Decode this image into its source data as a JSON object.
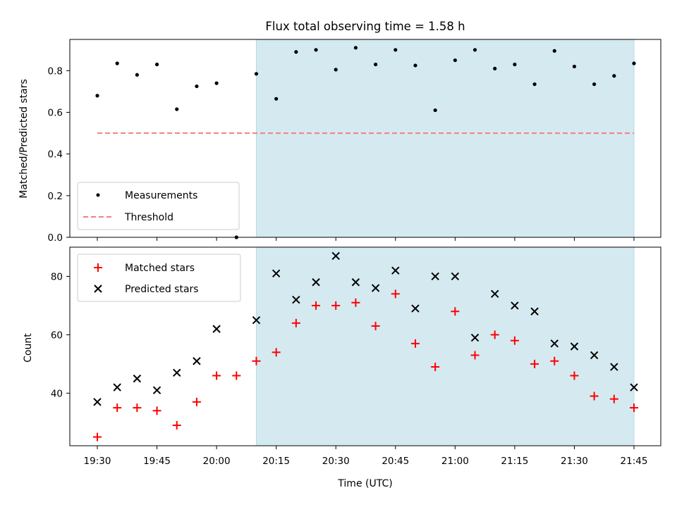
{
  "chart_data": [
    {
      "type": "scatter",
      "title": "Flux total observing time = 1.58 h",
      "xlabel": "",
      "ylabel": "Matched/Predicted stars",
      "ylim": [
        0.0,
        0.95
      ],
      "yticks": [
        "0.0",
        "0.2",
        "0.4",
        "0.6",
        "0.8"
      ],
      "shaded_region": {
        "start": "20:10",
        "end": "21:45",
        "color": "#d4eaf0"
      },
      "legend": {
        "position": "lower-left",
        "entries": [
          "Measurements",
          "Threshold"
        ]
      },
      "series": [
        {
          "name": "Measurements",
          "color": "#000000",
          "marker": "dot",
          "x": [
            "19:30",
            "19:35",
            "19:40",
            "19:45",
            "19:50",
            "19:55",
            "20:00",
            "20:05",
            "20:10",
            "20:15",
            "20:20",
            "20:25",
            "20:30",
            "20:35",
            "20:40",
            "20:45",
            "20:50",
            "20:55",
            "21:00",
            "21:05",
            "21:10",
            "21:15",
            "21:20",
            "21:25",
            "21:30",
            "21:35",
            "21:40",
            "21:45"
          ],
          "values": [
            0.68,
            0.835,
            0.78,
            0.83,
            0.615,
            0.725,
            0.74,
            0.0,
            0.785,
            0.665,
            0.89,
            0.9,
            0.805,
            0.91,
            0.83,
            0.9,
            0.825,
            0.61,
            0.85,
            0.9,
            0.81,
            0.83,
            0.735,
            0.895,
            0.82,
            0.735,
            0.775,
            0.835
          ]
        },
        {
          "name": "Threshold",
          "color": "#f08080",
          "line": "dashed",
          "x": [
            "19:30",
            "21:45"
          ],
          "values": [
            0.5,
            0.5
          ]
        }
      ]
    },
    {
      "type": "scatter",
      "title": "",
      "xlabel": "Time (UTC)",
      "ylabel": "Count",
      "ylim": [
        22,
        90
      ],
      "yticks": [
        "40",
        "60",
        "80"
      ],
      "xticks": [
        "19:30",
        "19:45",
        "20:00",
        "20:15",
        "20:30",
        "20:45",
        "21:00",
        "21:15",
        "21:30",
        "21:45"
      ],
      "shaded_region": {
        "start": "20:10",
        "end": "21:45",
        "color": "#d4eaf0"
      },
      "legend": {
        "position": "upper-left",
        "entries": [
          "Matched stars",
          "Predicted stars"
        ]
      },
      "series": [
        {
          "name": "Matched stars",
          "color": "#ff0000",
          "marker": "plus",
          "x": [
            "19:30",
            "19:35",
            "19:40",
            "19:45",
            "19:50",
            "19:55",
            "20:00",
            "20:05",
            "20:10",
            "20:15",
            "20:20",
            "20:25",
            "20:30",
            "20:35",
            "20:40",
            "20:45",
            "20:50",
            "20:55",
            "21:00",
            "21:05",
            "21:10",
            "21:15",
            "21:20",
            "21:25",
            "21:30",
            "21:35",
            "21:40",
            "21:45"
          ],
          "values": [
            25,
            35,
            35,
            34,
            29,
            37,
            46,
            46,
            51,
            54,
            64,
            70,
            70,
            71,
            63,
            74,
            57,
            49,
            68,
            53,
            60,
            58,
            50,
            51,
            46,
            39,
            38,
            35
          ]
        },
        {
          "name": "Predicted stars",
          "color": "#000000",
          "marker": "x",
          "x": [
            "19:30",
            "19:35",
            "19:40",
            "19:45",
            "19:50",
            "19:55",
            "20:00",
            "20:05",
            "20:10",
            "20:15",
            "20:20",
            "20:25",
            "20:30",
            "20:35",
            "20:40",
            "20:45",
            "20:50",
            "20:55",
            "21:00",
            "21:05",
            "21:10",
            "21:15",
            "21:20",
            "21:25",
            "21:30",
            "21:35",
            "21:40",
            "21:45"
          ],
          "values": [
            37,
            42,
            45,
            41,
            47,
            51,
            62,
            null,
            65,
            81,
            72,
            78,
            87,
            78,
            76,
            82,
            69,
            80,
            80,
            59,
            74,
            70,
            68,
            57,
            56,
            53,
            49,
            42
          ]
        }
      ]
    }
  ]
}
